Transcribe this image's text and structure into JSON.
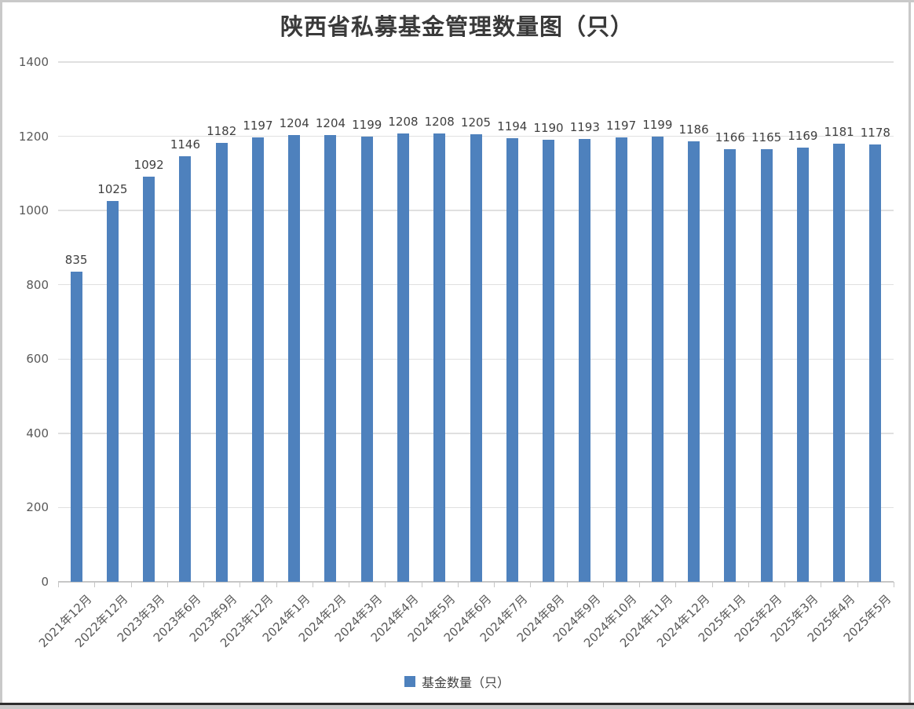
{
  "title": "陕西省私募基金管理数量图（只）",
  "chart_data": {
    "type": "bar",
    "title": "陕西省私募基金管理数量图（只）",
    "categories": [
      "2021年12月",
      "2022年12月",
      "2023年3月",
      "2023年6月",
      "2023年9月",
      "2023年12月",
      "2024年1月",
      "2024年2月",
      "2024年3月",
      "2024年4月",
      "2024年5月",
      "2024年6月",
      "2024年7月",
      "2024年8月",
      "2024年9月",
      "2024年10月",
      "2024年11月",
      "2024年12月",
      "2025年1月",
      "2025年2月",
      "2025年3月",
      "2025年4月",
      "2025年5月"
    ],
    "series": [
      {
        "name": "基金数量（只）",
        "values": [
          835,
          1025,
          1092,
          1146,
          1182,
          1197,
          1204,
          1204,
          1199,
          1208,
          1208,
          1205,
          1194,
          1190,
          1193,
          1197,
          1199,
          1186,
          1166,
          1165,
          1169,
          1181,
          1178
        ]
      }
    ],
    "xlabel": "",
    "ylabel": "",
    "ylim": [
      0,
      1400
    ],
    "ytick_step": 200,
    "yticks": [
      "0",
      "200",
      "400",
      "600",
      "800",
      "1000",
      "1200",
      "1400"
    ],
    "grid": true,
    "data_labels": true,
    "legend_position": "bottom",
    "bar_color": "#4e81bd",
    "gridline_color": "#e0e0e0",
    "axis_color": "#c6c6c6",
    "axis_text_color": "#595959",
    "data_label_color": "#404040",
    "title_color": "#3a3a3a"
  },
  "legend": {
    "label": "基金数量（只）",
    "swatch_color": "#4e81bd"
  }
}
